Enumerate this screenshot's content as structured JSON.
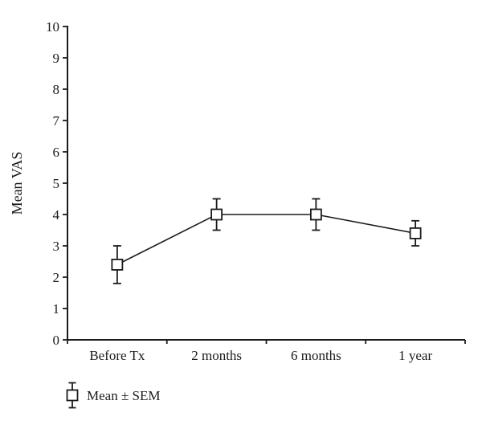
{
  "figure": {
    "background": "#ffffff"
  },
  "chart_data": {
    "type": "line",
    "title": "",
    "xlabel": "",
    "ylabel": "Mean VAS",
    "categories": [
      "Before Tx",
      "2 months",
      "6 months",
      "1 year"
    ],
    "series": [
      {
        "name": "Mean ± SEM",
        "marker": "open-square",
        "values": [
          2.4,
          4.0,
          4.0,
          3.4
        ],
        "errors": [
          0.6,
          0.5,
          0.5,
          0.4
        ]
      }
    ],
    "ylim": [
      0,
      10
    ],
    "yticks": [
      0,
      1,
      2,
      3,
      4,
      5,
      6,
      7,
      8,
      9,
      10
    ],
    "grid": false,
    "legend": {
      "label": "Mean ± SEM",
      "position": "bottom-left",
      "marker": "open-square-with-error-bar"
    },
    "colors": {
      "axis": "#1b1b1b",
      "line": "#1b1b1b",
      "text": "#1b1b1b",
      "marker_fill": "#ffffff",
      "background": "#ffffff"
    }
  }
}
